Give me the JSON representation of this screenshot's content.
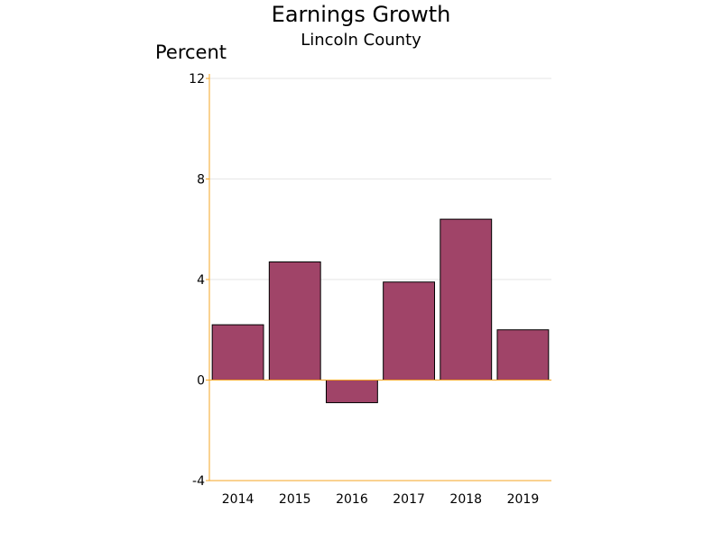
{
  "chart_data": {
    "type": "bar",
    "title": "Earnings Growth",
    "subtitle": "Lincoln County",
    "ylabel": "Percent",
    "xlabel": "",
    "categories": [
      "2014",
      "2015",
      "2016",
      "2017",
      "2018",
      "2019"
    ],
    "values": [
      2.2,
      4.7,
      -0.9,
      3.9,
      6.4,
      2.0
    ],
    "ylim": [
      -4,
      12
    ],
    "yticks": [
      -4,
      0,
      4,
      8,
      12
    ],
    "grid": true,
    "legend": "none",
    "colors": {
      "bar_fill": "#a04468",
      "bar_stroke": "#000000",
      "axis": "#f5a623",
      "gridline": "#e6e6e6"
    }
  }
}
